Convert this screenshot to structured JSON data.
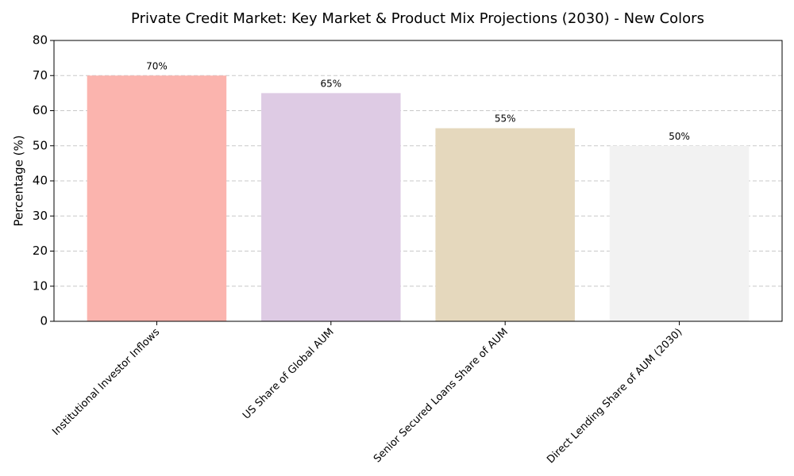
{
  "chart_data": {
    "type": "bar",
    "title": "Private Credit Market: Key Market & Product Mix Projections (2030) - New Colors",
    "y_label": "Percentage (%)",
    "categories": [
      "Institutional Investor Inflows",
      "US Share of Global AUM",
      "Senior Secured Loans Share of AUM",
      "Direct Lending Share of AUM (2030)"
    ],
    "values": [
      70,
      65,
      55,
      50
    ],
    "value_labels": [
      "70%",
      "65%",
      "55%",
      "50%"
    ],
    "colors": [
      "#fbb4ae",
      "#decbe4",
      "#e5d8bd",
      "#f2f2f2"
    ],
    "ylim": [
      0,
      80
    ],
    "yticks": [
      0,
      10,
      20,
      30,
      40,
      50,
      60,
      70,
      80
    ],
    "grid": true
  }
}
